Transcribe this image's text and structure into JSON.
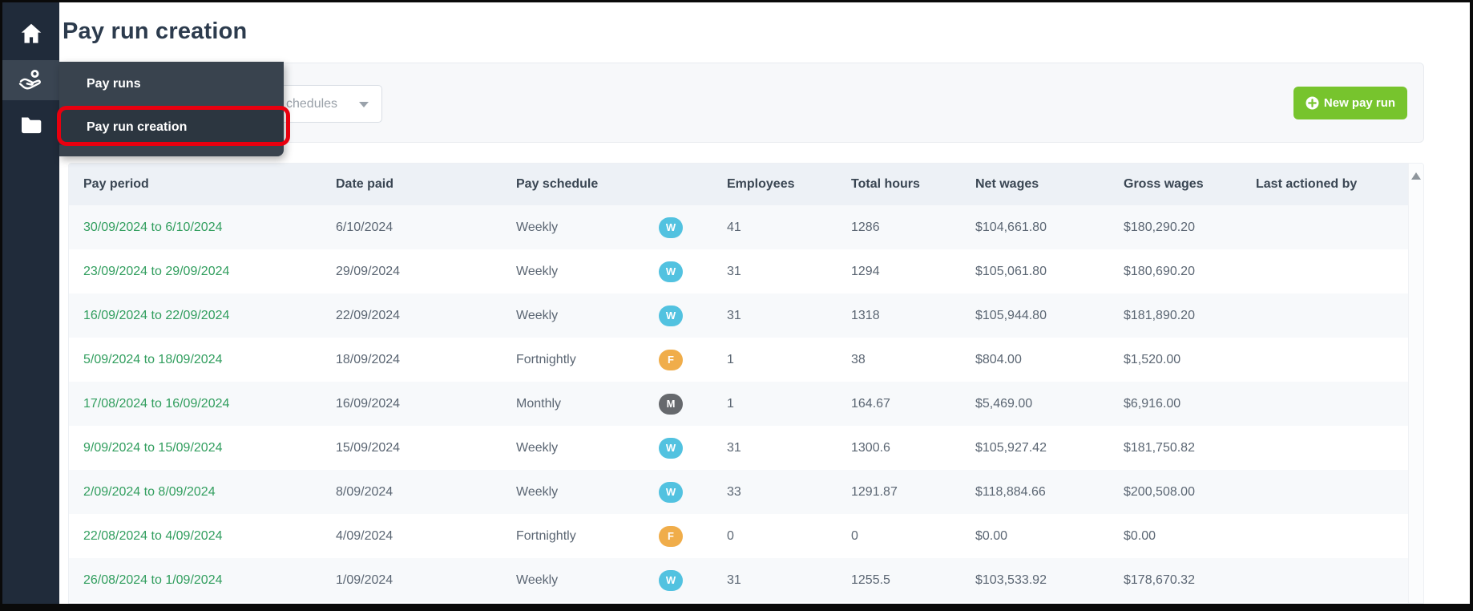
{
  "window": {
    "title": "Pay run creation"
  },
  "sidebar": {
    "icons": [
      {
        "name": "home"
      },
      {
        "name": "payroll"
      },
      {
        "name": "folder"
      }
    ]
  },
  "flyout_menu": {
    "items": [
      {
        "label": "Pay runs"
      },
      {
        "label": "Pay run creation",
        "highlighted": true
      }
    ]
  },
  "filter_bar": {
    "schedule_dropdown_value": "chedules",
    "new_pay_run_label": "New pay run"
  },
  "table": {
    "columns": [
      "Pay period",
      "Date paid",
      "Pay schedule",
      "Employees",
      "Total hours",
      "Net wages",
      "Gross wages",
      "Last actioned by"
    ],
    "rows": [
      {
        "pay_period": "30/09/2024 to 6/10/2024",
        "date_paid": "6/10/2024",
        "pay_schedule": "Weekly",
        "badge": {
          "letter": "W",
          "type": "weekly"
        },
        "employees": "41",
        "total_hours": "1286",
        "net_wages": "$104,661.80",
        "gross_wages": "$180,290.20",
        "last_actioned_by": ""
      },
      {
        "pay_period": "23/09/2024 to 29/09/2024",
        "date_paid": "29/09/2024",
        "pay_schedule": "Weekly",
        "badge": {
          "letter": "W",
          "type": "weekly"
        },
        "employees": "31",
        "total_hours": "1294",
        "net_wages": "$105,061.80",
        "gross_wages": "$180,690.20",
        "last_actioned_by": ""
      },
      {
        "pay_period": "16/09/2024 to 22/09/2024",
        "date_paid": "22/09/2024",
        "pay_schedule": "Weekly",
        "badge": {
          "letter": "W",
          "type": "weekly"
        },
        "employees": "31",
        "total_hours": "1318",
        "net_wages": "$105,944.80",
        "gross_wages": "$181,890.20",
        "last_actioned_by": ""
      },
      {
        "pay_period": "5/09/2024 to 18/09/2024",
        "date_paid": "18/09/2024",
        "pay_schedule": "Fortnightly",
        "badge": {
          "letter": "F",
          "type": "fortnightly"
        },
        "employees": "1",
        "total_hours": "38",
        "net_wages": "$804.00",
        "gross_wages": "$1,520.00",
        "last_actioned_by": ""
      },
      {
        "pay_period": "17/08/2024 to 16/09/2024",
        "date_paid": "16/09/2024",
        "pay_schedule": "Monthly",
        "badge": {
          "letter": "M",
          "type": "monthly"
        },
        "employees": "1",
        "total_hours": "164.67",
        "net_wages": "$5,469.00",
        "gross_wages": "$6,916.00",
        "last_actioned_by": ""
      },
      {
        "pay_period": "9/09/2024 to 15/09/2024",
        "date_paid": "15/09/2024",
        "pay_schedule": "Weekly",
        "badge": {
          "letter": "W",
          "type": "weekly"
        },
        "employees": "31",
        "total_hours": "1300.6",
        "net_wages": "$105,927.42",
        "gross_wages": "$181,750.82",
        "last_actioned_by": ""
      },
      {
        "pay_period": "2/09/2024 to 8/09/2024",
        "date_paid": "8/09/2024",
        "pay_schedule": "Weekly",
        "badge": {
          "letter": "W",
          "type": "weekly"
        },
        "employees": "33",
        "total_hours": "1291.87",
        "net_wages": "$118,884.66",
        "gross_wages": "$200,508.00",
        "last_actioned_by": ""
      },
      {
        "pay_period": "22/08/2024 to 4/09/2024",
        "date_paid": "4/09/2024",
        "pay_schedule": "Fortnightly",
        "badge": {
          "letter": "F",
          "type": "fortnightly"
        },
        "employees": "0",
        "total_hours": "0",
        "net_wages": "$0.00",
        "gross_wages": "$0.00",
        "last_actioned_by": ""
      },
      {
        "pay_period": "26/08/2024 to 1/09/2024",
        "date_paid": "1/09/2024",
        "pay_schedule": "Weekly",
        "badge": {
          "letter": "W",
          "type": "weekly"
        },
        "employees": "31",
        "total_hours": "1255.5",
        "net_wages": "$103,533.92",
        "gross_wages": "$178,670.32",
        "last_actioned_by": ""
      }
    ]
  },
  "colors": {
    "accent_green": "#77c42d",
    "link_green": "#319e5e",
    "badge_weekly": "#52c2e0",
    "badge_fortnightly": "#f0ad4a",
    "badge_monthly": "#66696d",
    "annotation_red": "#e8000f",
    "sidebar_bg": "#202b3a",
    "flyout_bg": "#39434e"
  }
}
